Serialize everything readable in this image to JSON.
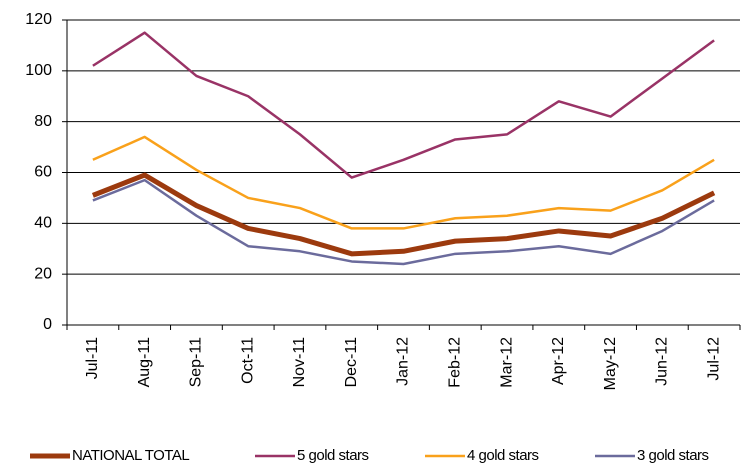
{
  "chart_data": {
    "type": "line",
    "categories": [
      "Jul-11",
      "Aug-11",
      "Sep-11",
      "Oct-11",
      "Nov-11",
      "Dec-11",
      "Jan-12",
      "Feb-12",
      "Mar-12",
      "Apr-12",
      "May-12",
      "Jun-12",
      "Jul-12"
    ],
    "series": [
      {
        "name": "NATIONAL TOTAL",
        "color": "#9c3a0e",
        "width": 5,
        "values": [
          51,
          59,
          47,
          38,
          34,
          28,
          29,
          33,
          34,
          37,
          35,
          42,
          52
        ]
      },
      {
        "name": "5 gold stars",
        "color": "#993366",
        "width": 2.5,
        "values": [
          102,
          115,
          98,
          90,
          75,
          58,
          65,
          73,
          75,
          88,
          82,
          97,
          112
        ]
      },
      {
        "name": "4 gold stars",
        "color": "#f9a11b",
        "width": 2.5,
        "values": [
          65,
          74,
          61,
          50,
          46,
          38,
          38,
          42,
          43,
          46,
          45,
          53,
          65
        ]
      },
      {
        "name": "3 gold stars",
        "color": "#6b6b9c",
        "width": 2.5,
        "values": [
          49,
          57,
          43,
          31,
          29,
          25,
          24,
          28,
          29,
          31,
          28,
          37,
          49
        ]
      }
    ],
    "ylim": [
      0,
      120
    ],
    "yticks": [
      0,
      20,
      40,
      60,
      80,
      100,
      120
    ],
    "grid": true,
    "legend": "bottom"
  }
}
